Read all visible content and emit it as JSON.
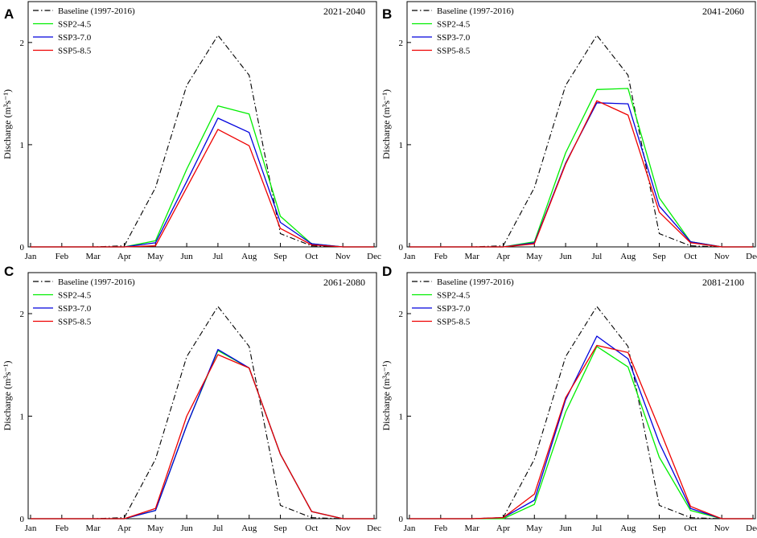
{
  "chart_data": [
    {
      "type": "line",
      "panel": "A",
      "period": "2021-2040",
      "ylabel": "Discharge (m³s⁻¹)",
      "xlabel": "",
      "categories": [
        "Jan",
        "Feb",
        "Mar",
        "Apr",
        "May",
        "Jun",
        "Jul",
        "Aug",
        "Sep",
        "Oct",
        "Nov",
        "Dec"
      ],
      "ylim": [
        0,
        2.4
      ],
      "yticks": [
        "0",
        "1",
        "2"
      ],
      "series": [
        {
          "name": "Baseline (1997-2016)",
          "color": "#000000",
          "style": "dashdot",
          "values": [
            0,
            0,
            0,
            0.01,
            0.58,
            1.58,
            2.07,
            1.68,
            0.13,
            0.01,
            0,
            0
          ]
        },
        {
          "name": "SSP2-4.5",
          "color": "#00ee00",
          "style": "solid",
          "values": [
            0,
            0,
            0,
            0,
            0.06,
            0.76,
            1.38,
            1.3,
            0.3,
            0.03,
            0,
            0
          ]
        },
        {
          "name": "SSP3-7.0",
          "color": "#0000dd",
          "style": "solid",
          "values": [
            0,
            0,
            0,
            0,
            0.04,
            0.64,
            1.26,
            1.12,
            0.24,
            0.03,
            0,
            0
          ]
        },
        {
          "name": "SSP5-8.5",
          "color": "#ee0000",
          "style": "solid",
          "values": [
            0,
            0,
            0,
            0,
            0.01,
            0.58,
            1.15,
            0.99,
            0.18,
            0.02,
            0,
            0
          ]
        }
      ]
    },
    {
      "type": "line",
      "panel": "B",
      "period": "2041-2060",
      "ylabel": "Discharge (m³s⁻¹)",
      "xlabel": "",
      "categories": [
        "Jan",
        "Feb",
        "Mar",
        "Apr",
        "May",
        "Jun",
        "Jul",
        "Aug",
        "Sep",
        "Oct",
        "Nov",
        "Dec"
      ],
      "ylim": [
        0,
        2.4
      ],
      "yticks": [
        "0",
        "1",
        "2"
      ],
      "series": [
        {
          "name": "Baseline (1997-2016)",
          "color": "#000000",
          "style": "dashdot",
          "values": [
            0,
            0,
            0,
            0.01,
            0.58,
            1.58,
            2.07,
            1.68,
            0.13,
            0.01,
            0,
            0
          ]
        },
        {
          "name": "SSP2-4.5",
          "color": "#00ee00",
          "style": "solid",
          "values": [
            0,
            0,
            0,
            0,
            0.05,
            0.92,
            1.54,
            1.55,
            0.48,
            0.05,
            0,
            0
          ]
        },
        {
          "name": "SSP3-7.0",
          "color": "#0000dd",
          "style": "solid",
          "values": [
            0,
            0,
            0,
            0,
            0.04,
            0.82,
            1.41,
            1.4,
            0.4,
            0.05,
            0,
            0
          ]
        },
        {
          "name": "SSP5-8.5",
          "color": "#ee0000",
          "style": "solid",
          "values": [
            0,
            0,
            0,
            0,
            0.03,
            0.81,
            1.43,
            1.29,
            0.34,
            0.04,
            0,
            0
          ]
        }
      ]
    },
    {
      "type": "line",
      "panel": "C",
      "period": "2061-2080",
      "ylabel": "Discharge (m³s⁻¹)",
      "xlabel": "",
      "categories": [
        "Jan",
        "Feb",
        "Mar",
        "Apr",
        "May",
        "Jun",
        "Jul",
        "Aug",
        "Sep",
        "Oct",
        "Nov",
        "Dec"
      ],
      "ylim": [
        0,
        2.4
      ],
      "yticks": [
        "0",
        "1",
        "2"
      ],
      "series": [
        {
          "name": "Baseline (1997-2016)",
          "color": "#000000",
          "style": "dashdot",
          "values": [
            0,
            0,
            0,
            0.01,
            0.58,
            1.58,
            2.07,
            1.68,
            0.13,
            0.01,
            0,
            0
          ]
        },
        {
          "name": "SSP2-4.5",
          "color": "#00ee00",
          "style": "solid",
          "values": [
            0,
            0,
            0,
            0,
            0.08,
            0.91,
            1.64,
            1.47,
            0.63,
            0.07,
            0,
            0
          ]
        },
        {
          "name": "SSP3-7.0",
          "color": "#0000dd",
          "style": "solid",
          "values": [
            0,
            0,
            0,
            0,
            0.08,
            0.91,
            1.65,
            1.47,
            0.63,
            0.07,
            0,
            0
          ]
        },
        {
          "name": "SSP5-8.5",
          "color": "#ee0000",
          "style": "solid",
          "values": [
            0,
            0,
            0,
            0,
            0.1,
            1.0,
            1.6,
            1.47,
            0.63,
            0.07,
            0,
            0
          ]
        }
      ]
    },
    {
      "type": "line",
      "panel": "D",
      "period": "2081-2100",
      "ylabel": "Discharge (m³s⁻¹)",
      "xlabel": "",
      "categories": [
        "Jan",
        "Feb",
        "Mar",
        "Apr",
        "May",
        "Jun",
        "Jul",
        "Aug",
        "Sep",
        "Oct",
        "Nov",
        "Dec"
      ],
      "ylim": [
        0,
        2.4
      ],
      "yticks": [
        "0",
        "1",
        "2"
      ],
      "series": [
        {
          "name": "Baseline (1997-2016)",
          "color": "#000000",
          "style": "dashdot",
          "values": [
            0,
            0,
            0,
            0.01,
            0.58,
            1.58,
            2.07,
            1.68,
            0.13,
            0.01,
            0,
            0
          ]
        },
        {
          "name": "SSP2-4.5",
          "color": "#00ee00",
          "style": "solid",
          "values": [
            0,
            0,
            0,
            0,
            0.14,
            1.04,
            1.68,
            1.48,
            0.6,
            0.08,
            0,
            0
          ]
        },
        {
          "name": "SSP3-7.0",
          "color": "#0000dd",
          "style": "solid",
          "values": [
            0,
            0,
            0,
            0.01,
            0.18,
            1.16,
            1.78,
            1.56,
            0.74,
            0.1,
            0,
            0
          ]
        },
        {
          "name": "SSP5-8.5",
          "color": "#ee0000",
          "style": "solid",
          "values": [
            0,
            0,
            0,
            0.01,
            0.24,
            1.18,
            1.69,
            1.62,
            0.88,
            0.12,
            0,
            0
          ]
        }
      ]
    }
  ]
}
